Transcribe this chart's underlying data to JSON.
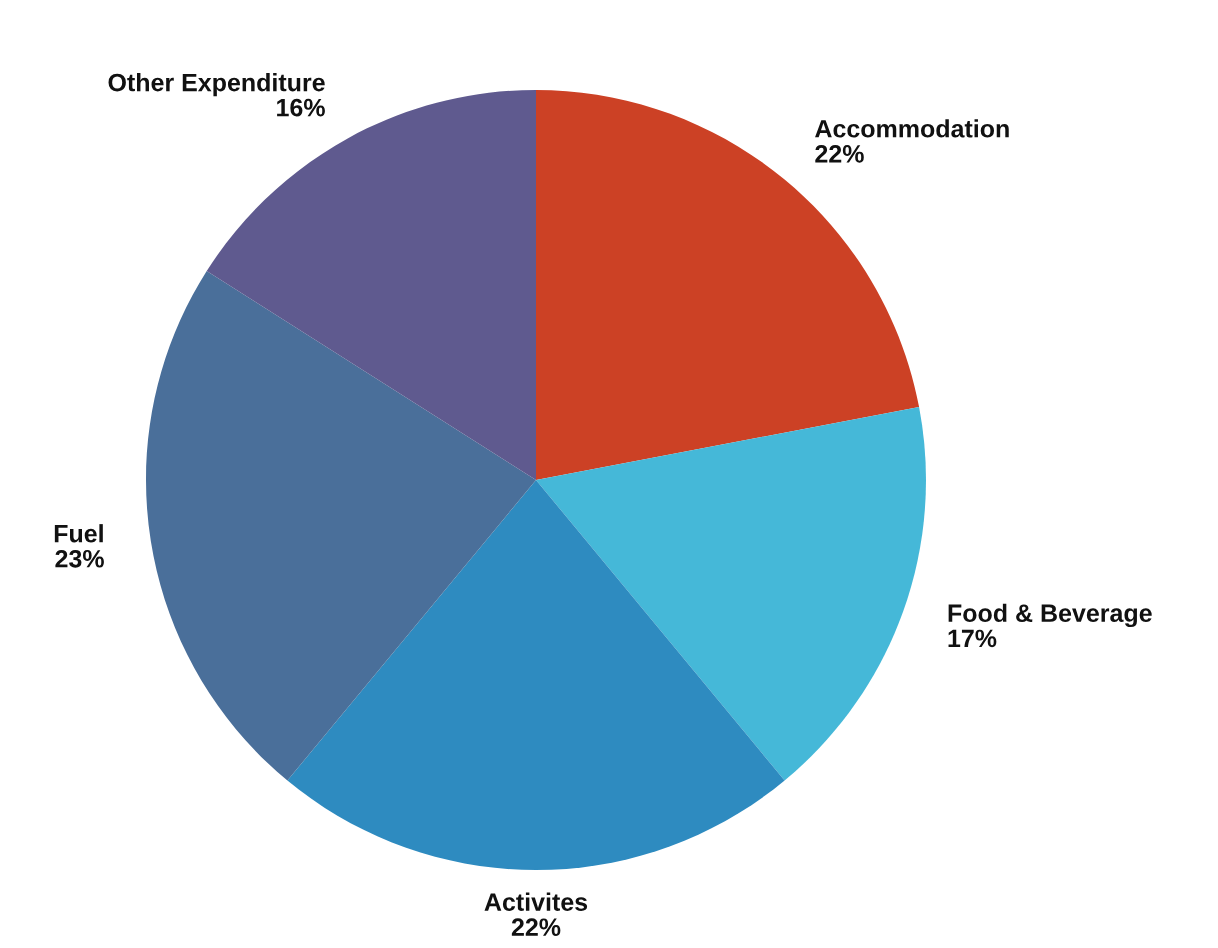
{
  "chart_data": {
    "type": "pie",
    "categories": [
      "Accommodation",
      "Food & Beverage",
      "Activites",
      "Fuel",
      "Other Expenditure"
    ],
    "values": [
      22,
      17,
      22,
      23,
      16
    ],
    "value_labels": [
      "22%",
      "17%",
      "22%",
      "23%",
      "16%"
    ],
    "colors": [
      "#cc4125",
      "#45b8d8",
      "#2e8bc0",
      "#4a6f9a",
      "#5f5a8f"
    ],
    "legend": false
  }
}
